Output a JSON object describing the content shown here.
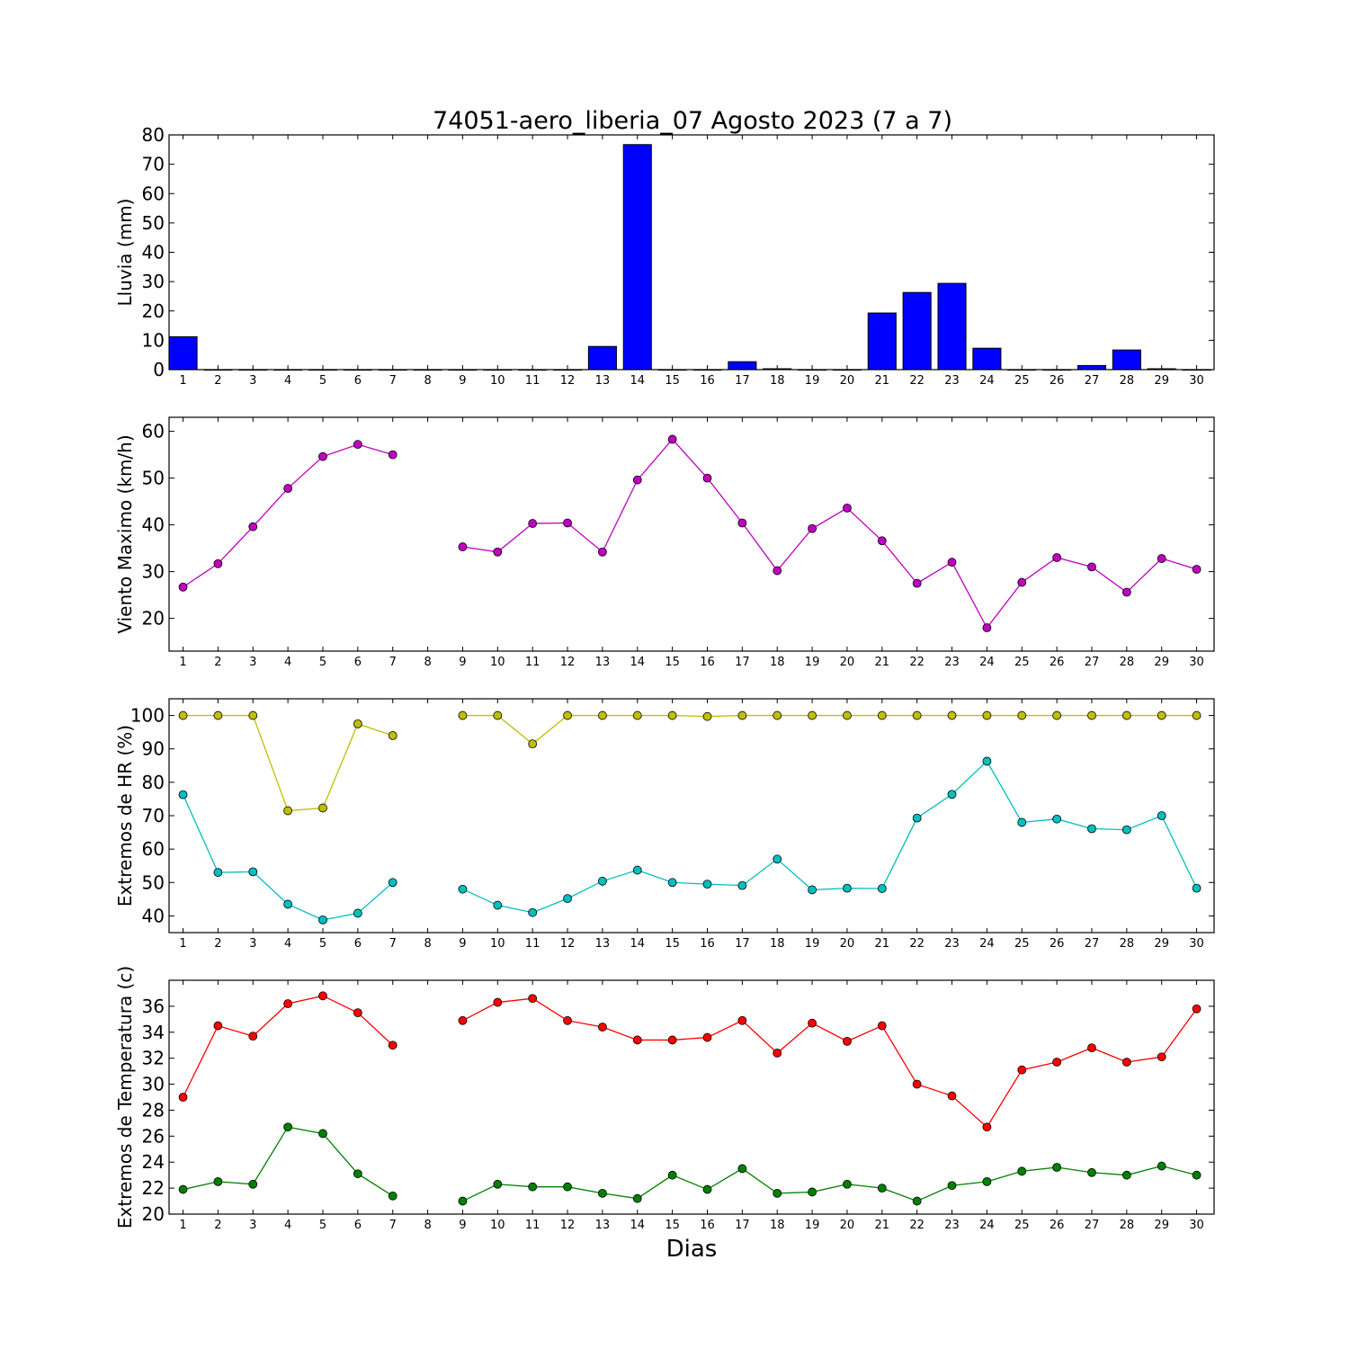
{
  "title": "74051-aero_liberia_07 Agosto 2023  (7 a 7)",
  "xlabel": "Dias",
  "colors": {
    "rain": "#0000ff",
    "wind": "#bf00bf",
    "hr_max": "#bfbf00",
    "hr_min": "#00bfbf",
    "temp_max": "#ff0000",
    "temp_min": "#008000"
  },
  "chart_data": [
    {
      "type": "bar",
      "ylabel": "Lluvia (mm)",
      "ylim": [
        0,
        80
      ],
      "yticks": [
        0,
        10,
        20,
        30,
        40,
        50,
        60,
        70,
        80
      ],
      "xlim": [
        0.6,
        30.5
      ],
      "categories": [
        1,
        2,
        3,
        4,
        5,
        6,
        7,
        8,
        9,
        10,
        11,
        12,
        13,
        14,
        15,
        16,
        17,
        18,
        19,
        20,
        21,
        22,
        23,
        24,
        25,
        26,
        27,
        28,
        29,
        30
      ],
      "values": [
        11.2,
        0,
        0,
        0,
        0,
        0,
        0,
        0,
        0,
        0,
        0,
        0,
        7.9,
        76.7,
        0,
        0,
        2.7,
        0.3,
        0,
        0,
        19.3,
        26.3,
        29.4,
        7.3,
        0,
        0,
        1.4,
        6.7,
        0.3,
        0
      ],
      "series": [
        {
          "values": [
            11.2,
            0,
            0,
            0,
            0,
            0,
            0,
            0,
            0,
            0,
            0,
            0,
            7.9,
            76.7,
            0,
            0,
            2.7,
            0.3,
            0,
            0,
            19.3,
            26.3,
            29.4,
            7.3,
            0,
            0,
            1.4,
            6.7,
            0.3,
            0
          ]
        }
      ]
    },
    {
      "type": "line",
      "ylabel": "Viento Maximo (km/h)",
      "ylim": [
        13,
        63
      ],
      "yticks": [
        20,
        30,
        40,
        50,
        60
      ],
      "xlim": [
        0.6,
        30.5
      ],
      "x": [
        1,
        2,
        3,
        4,
        5,
        6,
        7,
        8,
        9,
        10,
        11,
        12,
        13,
        14,
        15,
        16,
        17,
        18,
        19,
        20,
        21,
        22,
        23,
        24,
        25,
        26,
        27,
        28,
        29,
        30
      ],
      "series": [
        {
          "values": [
            26.7,
            31.7,
            39.6,
            47.8,
            54.6,
            57.2,
            55.0,
            null,
            35.3,
            34.2,
            40.3,
            40.4,
            34.2,
            49.6,
            58.3,
            50.0,
            40.4,
            30.2,
            39.2,
            43.6,
            36.6,
            27.5,
            32.0,
            18.0,
            27.7,
            33.0,
            31.0,
            25.6,
            32.8,
            30.5
          ]
        }
      ]
    },
    {
      "type": "line",
      "ylabel": "Extremos de HR (%)",
      "ylim": [
        35,
        105
      ],
      "yticks": [
        40,
        50,
        60,
        70,
        80,
        90,
        100
      ],
      "xlim": [
        0.6,
        30.5
      ],
      "x": [
        1,
        2,
        3,
        4,
        5,
        6,
        7,
        8,
        9,
        10,
        11,
        12,
        13,
        14,
        15,
        16,
        17,
        18,
        19,
        20,
        21,
        22,
        23,
        24,
        25,
        26,
        27,
        28,
        29,
        30
      ],
      "series": [
        {
          "values": [
            100,
            100,
            100,
            71.5,
            72.3,
            97.5,
            94.0,
            null,
            100,
            100,
            91.5,
            100,
            100,
            100,
            100,
            99.7,
            100,
            100,
            100,
            100,
            100,
            100,
            100,
            100,
            100,
            100,
            100,
            100,
            100,
            100
          ]
        },
        {
          "values": [
            76.3,
            53.0,
            53.2,
            43.5,
            38.8,
            40.8,
            50.0,
            null,
            48.0,
            43.2,
            41.0,
            45.2,
            50.4,
            53.7,
            50.0,
            49.5,
            49.1,
            57.0,
            47.8,
            48.3,
            48.2,
            69.3,
            76.4,
            86.3,
            68.0,
            69.0,
            66.1,
            65.8,
            70.0,
            48.3
          ]
        }
      ]
    },
    {
      "type": "line",
      "ylabel": "Extremos de Temperatura (c)",
      "ylim": [
        20,
        38
      ],
      "yticks": [
        20,
        22,
        24,
        26,
        28,
        30,
        32,
        34,
        36
      ],
      "xlim": [
        0.6,
        30.5
      ],
      "x": [
        1,
        2,
        3,
        4,
        5,
        6,
        7,
        8,
        9,
        10,
        11,
        12,
        13,
        14,
        15,
        16,
        17,
        18,
        19,
        20,
        21,
        22,
        23,
        24,
        25,
        26,
        27,
        28,
        29,
        30
      ],
      "series": [
        {
          "values": [
            29.0,
            34.5,
            33.7,
            36.2,
            36.8,
            35.5,
            33.0,
            null,
            34.9,
            36.3,
            36.6,
            34.9,
            34.4,
            33.4,
            33.4,
            33.6,
            34.9,
            32.4,
            34.7,
            33.3,
            34.5,
            30.0,
            29.1,
            26.7,
            31.1,
            31.7,
            32.8,
            31.7,
            32.1,
            35.8
          ]
        },
        {
          "values": [
            21.9,
            22.5,
            22.3,
            26.7,
            26.2,
            23.1,
            21.4,
            null,
            21.0,
            22.3,
            22.1,
            22.1,
            21.6,
            21.2,
            23.0,
            21.9,
            23.5,
            21.6,
            21.7,
            22.3,
            22.0,
            21.0,
            22.2,
            22.5,
            23.3,
            23.6,
            23.2,
            23.0,
            23.7,
            23.0
          ]
        }
      ]
    }
  ]
}
